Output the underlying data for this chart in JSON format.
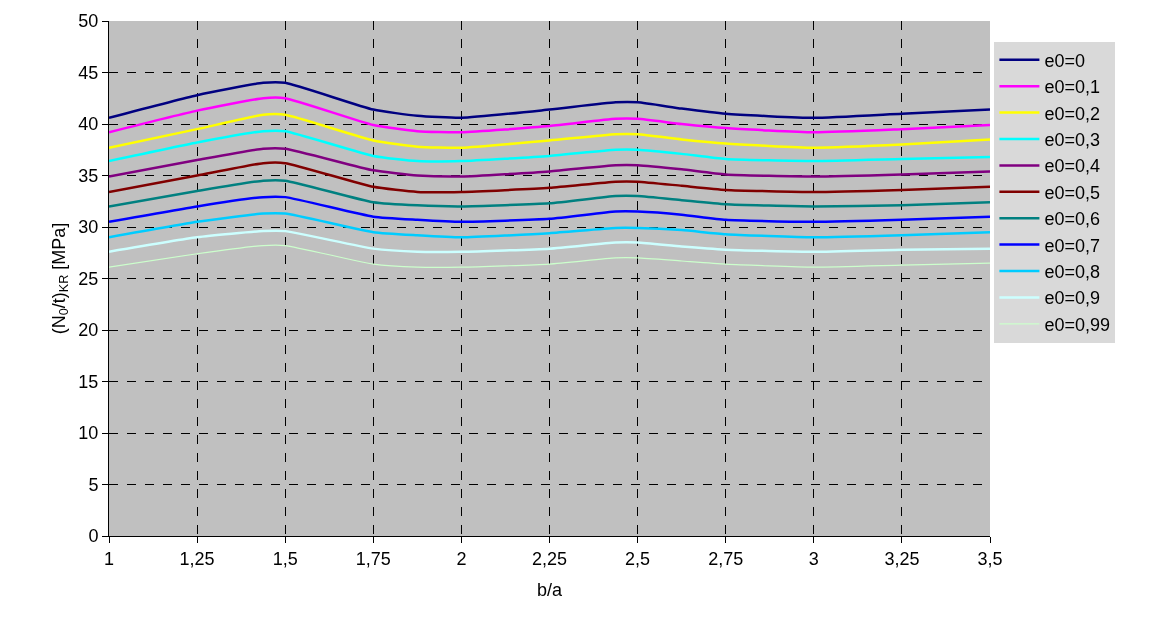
{
  "chart_data": {
    "type": "line",
    "xlabel": "b/a",
    "ylabel": "(N$_{0}$/t)$_{KR}$ [MPa]",
    "x": [
      1,
      1.25,
      1.4375,
      1.5,
      1.75,
      1.875,
      2,
      2.25,
      2.4375,
      2.5,
      2.625,
      2.75,
      3,
      3.25,
      3.5
    ],
    "xlim": [
      1,
      3.5
    ],
    "xticks": [
      1,
      {
        "value": 1.25,
        "label": "1,25"
      },
      {
        "value": 1.5,
        "label": "1,5"
      },
      {
        "value": 1.75,
        "label": "1,75"
      },
      2,
      {
        "value": 2.25,
        "label": "2,25"
      },
      {
        "value": 2.5,
        "label": "2,5"
      },
      {
        "value": 2.75,
        "label": "2,75"
      },
      3,
      {
        "value": 3.25,
        "label": "3,25"
      },
      {
        "value": 3.5,
        "label": "3,5"
      }
    ],
    "ylim": [
      0,
      50
    ],
    "yticks": [
      0,
      5,
      10,
      15,
      20,
      25,
      30,
      35,
      40,
      45,
      50
    ],
    "grid": true,
    "legend": "right",
    "line_style": "solid",
    "marker": "none",
    "series": [
      {
        "name": "e0=0",
        "color": "#000080",
        "values": [
          40.6,
          42.8,
          44.0,
          44.0,
          41.4,
          40.8,
          40.6,
          41.4,
          42.1,
          42.1,
          41.5,
          41.0,
          40.6,
          41.0,
          41.4
        ]
      },
      {
        "name": "e0=0,1",
        "color": "#ff00ff",
        "values": [
          39.2,
          41.3,
          42.5,
          42.5,
          39.9,
          39.3,
          39.2,
          39.8,
          40.5,
          40.5,
          40.0,
          39.6,
          39.2,
          39.5,
          39.9
        ]
      },
      {
        "name": "e0=0,2",
        "color": "#ffff00",
        "values": [
          37.7,
          39.5,
          40.9,
          40.9,
          38.4,
          37.8,
          37.7,
          38.4,
          39.0,
          39.0,
          38.5,
          38.1,
          37.7,
          38.0,
          38.5
        ]
      },
      {
        "name": "e0=0,3",
        "color": "#00ffff",
        "values": [
          36.4,
          38.2,
          39.3,
          39.3,
          36.9,
          36.4,
          36.4,
          36.9,
          37.5,
          37.5,
          37.1,
          36.6,
          36.4,
          36.6,
          36.8
        ]
      },
      {
        "name": "e0=0,4",
        "color": "#800080",
        "values": [
          34.9,
          36.5,
          37.6,
          37.6,
          35.5,
          35.0,
          34.9,
          35.4,
          36.0,
          36.0,
          35.6,
          35.1,
          34.9,
          35.1,
          35.4
        ]
      },
      {
        "name": "e0=0,5",
        "color": "#800000",
        "values": [
          33.4,
          35.0,
          36.2,
          36.2,
          33.9,
          33.4,
          33.4,
          33.8,
          34.4,
          34.4,
          34.0,
          33.6,
          33.4,
          33.6,
          33.9
        ]
      },
      {
        "name": "e0=0,6",
        "color": "#008080",
        "values": [
          32.0,
          33.5,
          34.5,
          34.5,
          32.4,
          32.1,
          32.0,
          32.3,
          33.0,
          33.0,
          32.6,
          32.2,
          32.0,
          32.1,
          32.4
        ]
      },
      {
        "name": "e0=0,7",
        "color": "#0000ff",
        "values": [
          30.5,
          32.0,
          32.9,
          32.9,
          31.0,
          30.7,
          30.5,
          30.8,
          31.5,
          31.5,
          31.2,
          30.7,
          30.5,
          30.7,
          31.0
        ]
      },
      {
        "name": "e0=0,8",
        "color": "#00ccff",
        "values": [
          29.0,
          30.5,
          31.3,
          31.3,
          29.5,
          29.2,
          29.0,
          29.4,
          29.9,
          29.9,
          29.7,
          29.3,
          29.0,
          29.2,
          29.5
        ]
      },
      {
        "name": "e0=0,9",
        "color": "#ccffff",
        "values": [
          27.6,
          29.0,
          29.6,
          29.6,
          27.9,
          27.6,
          27.6,
          27.9,
          28.5,
          28.5,
          28.1,
          27.8,
          27.6,
          27.8,
          27.9
        ]
      },
      {
        "name": "e0=0,99",
        "color": "#ccffcc",
        "values": [
          26.1,
          27.4,
          28.2,
          28.2,
          26.4,
          26.1,
          26.1,
          26.4,
          27.0,
          27.0,
          26.7,
          26.4,
          26.1,
          26.3,
          26.5
        ]
      }
    ]
  }
}
